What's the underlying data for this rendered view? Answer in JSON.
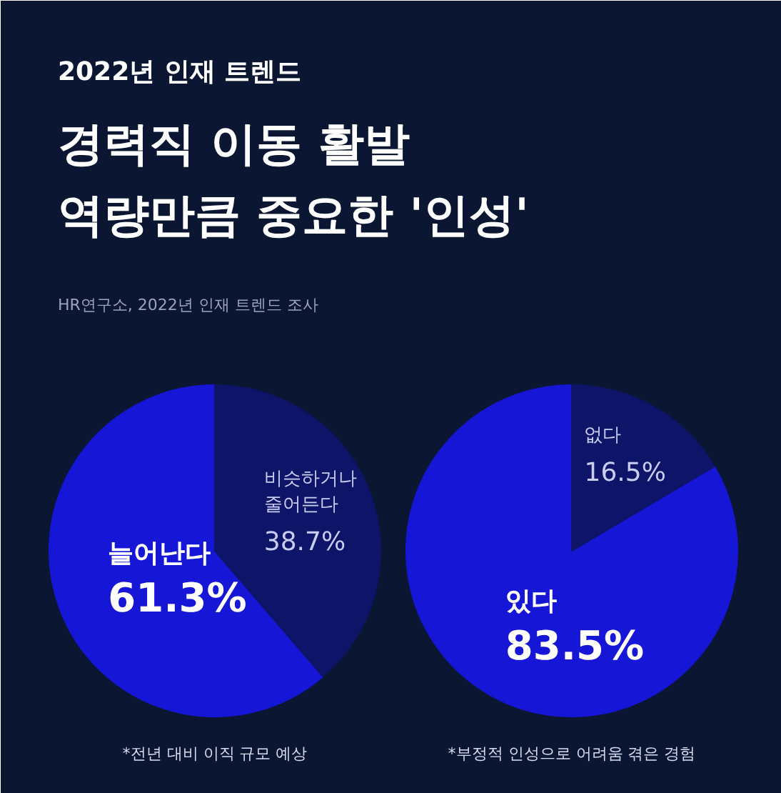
{
  "chart_data": [
    {
      "type": "pie",
      "subtitle": "2022년 인재 트렌드",
      "title": "경력직 이동 활발\n역량만큼 중요한 '인성'",
      "annotations": [
        "HR연구소, 2022년 인재 트렌드 조사",
        "*전년 대비 이직 규모 예상"
      ],
      "categories": [
        "늘어난다",
        "비슷하거나\n줄어든다"
      ],
      "values": [
        61.3,
        38.7
      ],
      "value_labels": [
        "61.3%",
        "38.7%"
      ],
      "colors": [
        "#1616d6",
        "#0e1468"
      ]
    },
    {
      "type": "pie",
      "annotations": [
        "*부정적 인성으로 어려움 겪은 경험"
      ],
      "categories": [
        "있다",
        "없다"
      ],
      "values": [
        83.5,
        16.5
      ],
      "value_labels": [
        "83.5%",
        "16.5%"
      ],
      "colors": [
        "#1616d6",
        "#0e1468"
      ]
    }
  ]
}
